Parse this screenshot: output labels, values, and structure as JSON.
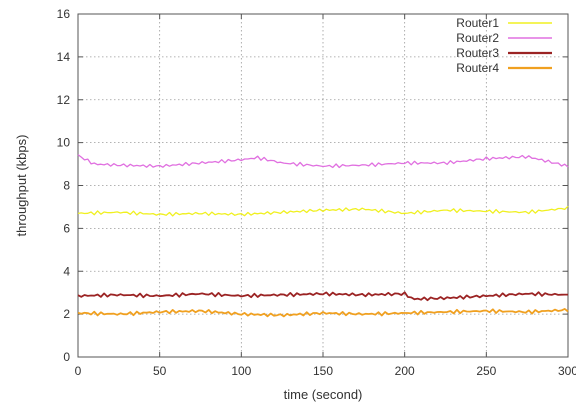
{
  "chart_data": {
    "type": "line",
    "title": "",
    "xlabel": "time (second)",
    "ylabel": "throughput (kbps)",
    "xlim": [
      0,
      300
    ],
    "ylim": [
      0,
      16
    ],
    "xticks": [
      0,
      50,
      100,
      150,
      200,
      250,
      300
    ],
    "yticks": [
      0,
      2,
      4,
      6,
      8,
      10,
      12,
      14,
      16
    ],
    "grid": true,
    "legend_position": "top-right",
    "series": [
      {
        "name": "Router1",
        "color": "#f0f020",
        "x": [
          0,
          25,
          50,
          75,
          100,
          125,
          150,
          175,
          200,
          225,
          250,
          275,
          300
        ],
        "y": [
          6.7,
          6.75,
          6.65,
          6.7,
          6.65,
          6.75,
          6.85,
          6.9,
          6.7,
          6.85,
          6.8,
          6.75,
          6.95
        ]
      },
      {
        "name": "Router2",
        "color": "#e070e0",
        "x": [
          0,
          10,
          25,
          50,
          75,
          100,
          110,
          125,
          150,
          175,
          200,
          225,
          250,
          275,
          300
        ],
        "y": [
          9.4,
          9.0,
          8.95,
          8.9,
          9.05,
          9.2,
          9.3,
          9.05,
          8.9,
          8.95,
          9.05,
          9.05,
          9.25,
          9.35,
          8.9
        ]
      },
      {
        "name": "Router3",
        "color": "#9b2323",
        "x": [
          0,
          25,
          50,
          75,
          100,
          125,
          150,
          175,
          200,
          205,
          225,
          250,
          275,
          300
        ],
        "y": [
          2.85,
          2.9,
          2.85,
          2.95,
          2.85,
          2.9,
          2.95,
          2.9,
          2.95,
          2.7,
          2.75,
          2.85,
          2.95,
          2.9
        ]
      },
      {
        "name": "Router4",
        "color": "#f0a020",
        "x": [
          0,
          25,
          50,
          75,
          100,
          125,
          150,
          175,
          200,
          225,
          250,
          275,
          300
        ],
        "y": [
          2.05,
          2.0,
          2.1,
          2.15,
          2.0,
          1.95,
          2.05,
          2.0,
          2.05,
          2.1,
          2.15,
          2.1,
          2.2
        ]
      }
    ]
  }
}
